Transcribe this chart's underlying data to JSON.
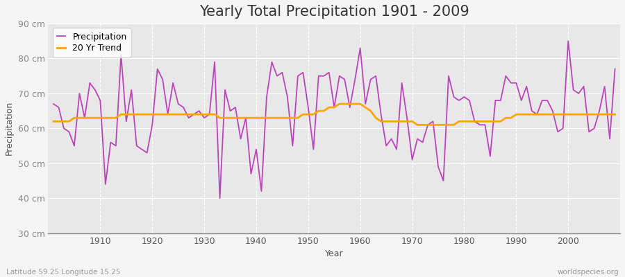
{
  "title": "Yearly Total Precipitation 1901 - 2009",
  "xlabel": "Year",
  "ylabel": "Precipitation",
  "subtitle_left": "Latitude 59.25 Longitude 15.25",
  "subtitle_right": "worldspecies.org",
  "years": [
    1901,
    1902,
    1903,
    1904,
    1905,
    1906,
    1907,
    1908,
    1909,
    1910,
    1911,
    1912,
    1913,
    1914,
    1915,
    1916,
    1917,
    1918,
    1919,
    1920,
    1921,
    1922,
    1923,
    1924,
    1925,
    1926,
    1927,
    1928,
    1929,
    1930,
    1931,
    1932,
    1933,
    1934,
    1935,
    1936,
    1937,
    1938,
    1939,
    1940,
    1941,
    1942,
    1943,
    1944,
    1945,
    1946,
    1947,
    1948,
    1949,
    1950,
    1951,
    1952,
    1953,
    1954,
    1955,
    1956,
    1957,
    1958,
    1959,
    1960,
    1961,
    1962,
    1963,
    1964,
    1965,
    1966,
    1967,
    1968,
    1969,
    1970,
    1971,
    1972,
    1973,
    1974,
    1975,
    1976,
    1977,
    1978,
    1979,
    1980,
    1981,
    1982,
    1983,
    1984,
    1985,
    1986,
    1987,
    1988,
    1989,
    1990,
    1991,
    1992,
    1993,
    1994,
    1995,
    1996,
    1997,
    1998,
    1999,
    2000,
    2001,
    2002,
    2003,
    2004,
    2005,
    2006,
    2007,
    2008,
    2009
  ],
  "precipitation": [
    67,
    66,
    60,
    59,
    55,
    70,
    63,
    73,
    71,
    68,
    44,
    56,
    55,
    81,
    62,
    71,
    55,
    54,
    53,
    61,
    77,
    74,
    64,
    73,
    67,
    66,
    63,
    64,
    65,
    63,
    64,
    79,
    40,
    71,
    65,
    66,
    57,
    63,
    47,
    54,
    42,
    69,
    79,
    75,
    76,
    69,
    55,
    75,
    76,
    66,
    54,
    75,
    75,
    76,
    66,
    75,
    74,
    66,
    74,
    83,
    67,
    74,
    75,
    64,
    55,
    57,
    54,
    73,
    63,
    51,
    57,
    56,
    61,
    62,
    49,
    45,
    75,
    69,
    68,
    69,
    68,
    62,
    61,
    61,
    52,
    68,
    68,
    75,
    73,
    73,
    68,
    72,
    65,
    64,
    68,
    68,
    65,
    59,
    60,
    85,
    71,
    70,
    72,
    59,
    60,
    65,
    72,
    57,
    77
  ],
  "trend": [
    62,
    62,
    62,
    62,
    63,
    63,
    63,
    63,
    63,
    63,
    63,
    63,
    63,
    64,
    64,
    64,
    64,
    64,
    64,
    64,
    64,
    64,
    64,
    64,
    64,
    64,
    64,
    64,
    64,
    64,
    64,
    64,
    63,
    63,
    63,
    63,
    63,
    63,
    63,
    63,
    63,
    63,
    63,
    63,
    63,
    63,
    63,
    63,
    64,
    64,
    64,
    65,
    65,
    66,
    66,
    67,
    67,
    67,
    67,
    67,
    66,
    65,
    63,
    62,
    62,
    62,
    62,
    62,
    62,
    62,
    61,
    61,
    61,
    61,
    61,
    61,
    61,
    61,
    62,
    62,
    62,
    62,
    62,
    62,
    62,
    62,
    62,
    63,
    63,
    64,
    64,
    64,
    64,
    64,
    64,
    64,
    64,
    64,
    64,
    64,
    64,
    64,
    64,
    64,
    64,
    64,
    64,
    64,
    64
  ],
  "precip_color": "#BB44BB",
  "trend_color": "#FFA500",
  "figure_bg_color": "#F5F5F5",
  "plot_bg_color": "#E8E8E8",
  "grid_color": "#FFFFFF",
  "bottom_spine_color": "#888888",
  "ytick_label_color": "#888888",
  "xtick_label_color": "#555555",
  "ylim": [
    30,
    90
  ],
  "yticks": [
    30,
    40,
    50,
    60,
    70,
    80,
    90
  ],
  "ytick_labels": [
    "30 cm",
    "40 cm",
    "50 cm",
    "60 cm",
    "70 cm",
    "80 cm",
    "90 cm"
  ],
  "xticks": [
    1910,
    1920,
    1930,
    1940,
    1950,
    1960,
    1970,
    1980,
    1990,
    2000
  ],
  "xlim": [
    1900,
    2010
  ],
  "title_fontsize": 15,
  "axis_label_fontsize": 9,
  "tick_fontsize": 9,
  "legend_fontsize": 9,
  "precip_linewidth": 1.3,
  "trend_linewidth": 2.0
}
